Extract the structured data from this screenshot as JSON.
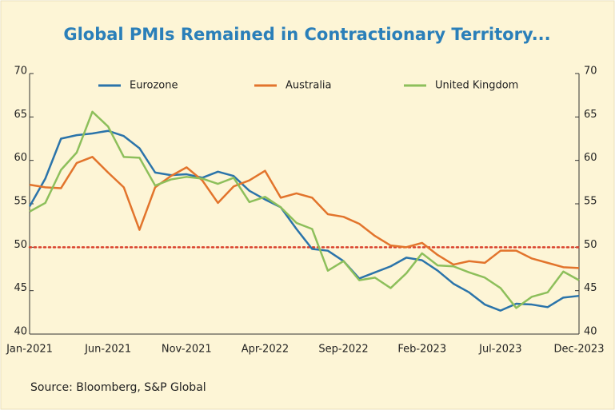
{
  "chart_data": {
    "type": "line",
    "title": "Global PMIs Remained in Contractionary Territory...",
    "source": "Source: Bloomberg, S&P Global",
    "categories": [
      "Jan-2021",
      null,
      null,
      null,
      null,
      "Jun-2021",
      null,
      null,
      null,
      null,
      "Nov-2021",
      null,
      null,
      null,
      null,
      "Apr-2022",
      null,
      null,
      null,
      null,
      "Sep-2022",
      null,
      null,
      null,
      null,
      "Feb-2023",
      null,
      null,
      null,
      null,
      "Jul-2023",
      null,
      null,
      null,
      null,
      "Dec-2023"
    ],
    "series": [
      {
        "name": "Eurozone",
        "color": "#2b74aa",
        "values": [
          54.7,
          57.9,
          62.5,
          62.9,
          63.1,
          63.4,
          62.8,
          61.4,
          58.6,
          58.3,
          58.4,
          58.0,
          58.7,
          58.2,
          56.5,
          55.5,
          54.6,
          52.1,
          49.8,
          49.6,
          48.4,
          46.4,
          47.1,
          47.8,
          48.8,
          48.5,
          47.3,
          45.8,
          44.8,
          43.4,
          42.7,
          43.5,
          43.4,
          43.1,
          44.2,
          44.4
        ]
      },
      {
        "name": "Australia",
        "color": "#e2742c",
        "values": [
          57.2,
          56.9,
          56.8,
          59.7,
          60.4,
          58.6,
          56.9,
          52.0,
          56.9,
          58.2,
          59.2,
          57.7,
          55.1,
          57.0,
          57.7,
          58.8,
          55.7,
          56.2,
          55.7,
          53.8,
          53.5,
          52.7,
          51.3,
          50.2,
          50.0,
          50.5,
          49.1,
          48.0,
          48.4,
          48.2,
          49.6,
          49.6,
          48.7,
          48.2,
          47.7,
          47.6
        ]
      },
      {
        "name": "United Kingdom",
        "color": "#8dbf5b",
        "values": [
          54.1,
          55.1,
          58.9,
          60.9,
          65.6,
          63.9,
          60.4,
          60.3,
          57.1,
          57.8,
          58.1,
          57.9,
          57.3,
          58.0,
          55.2,
          55.8,
          54.6,
          52.8,
          52.1,
          47.3,
          48.4,
          46.2,
          46.5,
          45.3,
          47.0,
          49.3,
          47.9,
          47.8,
          47.1,
          46.5,
          45.3,
          43.0,
          44.3,
          44.8,
          47.2,
          46.2
        ]
      }
    ],
    "ylim": [
      40,
      70
    ],
    "yticks": [
      40,
      45,
      50,
      55,
      60,
      65,
      70
    ],
    "y2lim": [
      40,
      70
    ],
    "y2ticks": [
      40,
      45,
      50,
      55,
      60,
      65,
      70
    ],
    "reference_line": {
      "value": 50,
      "color": "#d9412c"
    },
    "legend": "top",
    "grid": false
  }
}
